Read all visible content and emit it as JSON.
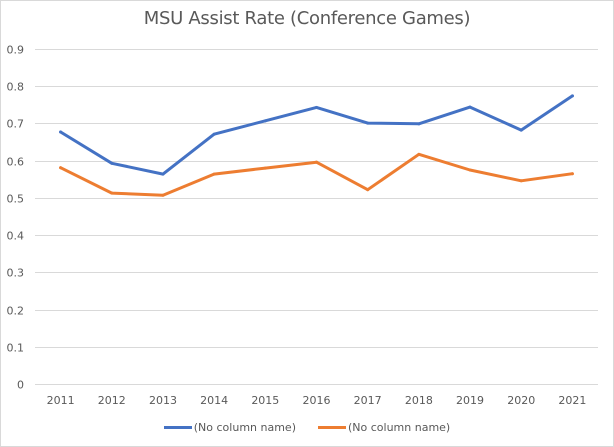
{
  "chart_data": {
    "type": "line",
    "title": "MSU Assist Rate (Conference Games)",
    "xlabel": "",
    "ylabel": "",
    "categories": [
      "2011",
      "2012",
      "2013",
      "2014",
      "2015",
      "2016",
      "2017",
      "2018",
      "2019",
      "2020",
      "2021"
    ],
    "series": [
      {
        "name": "(No column name)",
        "color": "#4472c4",
        "values": [
          0.677,
          0.593,
          0.564,
          0.671,
          0.707,
          0.743,
          0.701,
          0.699,
          0.744,
          0.682,
          0.774
        ]
      },
      {
        "name": "(No column name)",
        "color": "#ed7d31",
        "values": [
          0.581,
          0.513,
          0.507,
          0.564,
          0.58,
          0.596,
          0.522,
          0.617,
          0.575,
          0.546,
          0.565
        ]
      }
    ],
    "ylim": [
      0,
      0.9
    ],
    "yticks": [
      "0",
      "0.1",
      "0.2",
      "0.3",
      "0.4",
      "0.5",
      "0.6",
      "0.7",
      "0.8",
      "0.9"
    ],
    "grid": true,
    "legend": "bottom"
  }
}
